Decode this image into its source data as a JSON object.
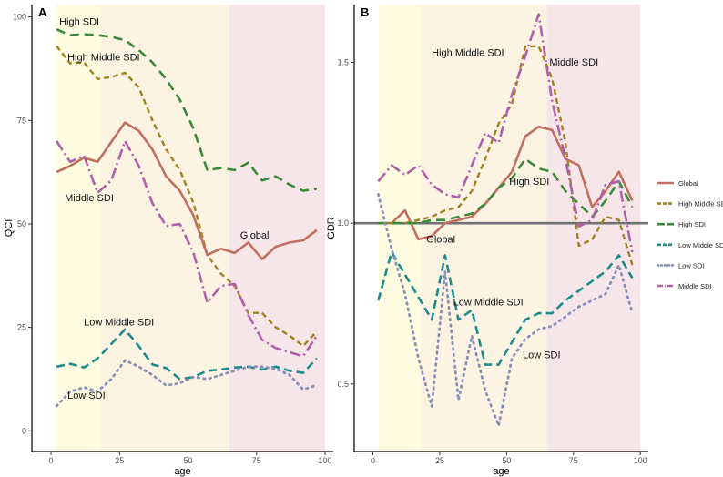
{
  "panels": [
    {
      "id": "A",
      "label": "A",
      "type": "line",
      "xlabel": "age",
      "ylabel": "QCI",
      "xlim": [
        -7,
        103
      ],
      "ylim": [
        -5,
        103
      ],
      "xticks": [
        0,
        25,
        50,
        75,
        100
      ],
      "yticks": [
        0,
        25,
        50,
        75,
        100
      ],
      "bands": [
        {
          "from": 2,
          "to": 18,
          "color": "#fdfce0"
        },
        {
          "from": 18,
          "to": 65,
          "color": "#fdf3e3"
        },
        {
          "from": 65,
          "to": 100,
          "color": "#f6e6e9"
        }
      ],
      "series": [
        {
          "name": "High SDI",
          "color": "#3a8a3a",
          "dash": "10,6",
          "width": 2.6,
          "x": [
            2,
            7,
            12,
            17,
            22,
            27,
            32,
            37,
            42,
            47,
            52,
            57,
            62,
            67,
            72,
            77,
            82,
            87,
            92,
            97
          ],
          "y": [
            97,
            95.6,
            95.8,
            95.6,
            95.2,
            94.4,
            92,
            89,
            85,
            80,
            73,
            63,
            63.5,
            63,
            64.8,
            60.5,
            61.5,
            59.5,
            58,
            58.5
          ]
        },
        {
          "name": "High Middle SDI",
          "color": "#a08224",
          "dash": "6,4",
          "width": 2.4,
          "x": [
            2,
            7,
            12,
            17,
            22,
            27,
            32,
            37,
            42,
            47,
            52,
            57,
            62,
            67,
            72,
            77,
            82,
            87,
            92,
            97
          ],
          "y": [
            93,
            88.8,
            89,
            85,
            85.5,
            86.5,
            83,
            75,
            68,
            63,
            55,
            42.5,
            38,
            35,
            28.5,
            28.5,
            25,
            23,
            20.5,
            24
          ]
        },
        {
          "name": "Global",
          "color": "#c07060",
          "dash": "",
          "width": 2.6,
          "x": [
            2,
            7,
            12,
            17,
            22,
            27,
            32,
            37,
            42,
            47,
            52,
            57,
            62,
            67,
            72,
            77,
            82,
            87,
            92,
            97
          ],
          "y": [
            62.5,
            64,
            66,
            65,
            69.8,
            74.5,
            72.5,
            68,
            61.5,
            58,
            52,
            42.5,
            44,
            43,
            45.5,
            41.5,
            44.5,
            45.5,
            46,
            48.5
          ]
        },
        {
          "name": "Middle SDI",
          "color": "#b060a8",
          "dash": "12,4,2,4",
          "width": 2.6,
          "x": [
            2,
            7,
            12,
            17,
            22,
            27,
            32,
            37,
            42,
            47,
            52,
            57,
            62,
            67,
            72,
            77,
            82,
            87,
            92,
            97
          ],
          "y": [
            70,
            65,
            66.5,
            57.5,
            60.5,
            70,
            64,
            55,
            49.5,
            50,
            43,
            31,
            35,
            35.5,
            28,
            22,
            20,
            19,
            18,
            23
          ]
        },
        {
          "name": "Low Middle SDI",
          "color": "#1e8c8c",
          "dash": "9,5",
          "width": 2.6,
          "x": [
            2,
            7,
            12,
            17,
            22,
            27,
            32,
            37,
            42,
            47,
            52,
            57,
            62,
            67,
            72,
            77,
            82,
            87,
            92,
            97
          ],
          "y": [
            15.5,
            16.2,
            15.3,
            17.5,
            21,
            24.5,
            20.5,
            16,
            15.2,
            12.5,
            13,
            14.5,
            14.8,
            15.3,
            15.5,
            14.8,
            15.5,
            14.5,
            14,
            17.5
          ]
        },
        {
          "name": "Low SDI",
          "color": "#8890b8",
          "dash": "1.5,5",
          "width": 2.8,
          "x": [
            2,
            7,
            12,
            17,
            22,
            27,
            32,
            37,
            42,
            47,
            52,
            57,
            62,
            67,
            72,
            77,
            82,
            87,
            92,
            97
          ],
          "y": [
            6,
            9.5,
            10.5,
            9.5,
            12.5,
            17,
            15.5,
            13.5,
            11,
            11.5,
            13,
            12.5,
            13.5,
            14.5,
            15.5,
            15.5,
            15,
            13.5,
            10,
            11
          ]
        }
      ],
      "annotations": [
        {
          "text": "High SDI",
          "x": 3,
          "y": 98
        },
        {
          "text": "High Middle SDI",
          "x": 6,
          "y": 89.5
        },
        {
          "text": "Middle SDI",
          "x": 5,
          "y": 55.5
        },
        {
          "text": "Global",
          "x": 69,
          "y": 46.5
        },
        {
          "text": "Low Middle SDI",
          "x": 12,
          "y": 25.5
        },
        {
          "text": "Low SDI",
          "x": 6,
          "y": 7.8
        }
      ]
    },
    {
      "id": "B",
      "label": "B",
      "type": "line",
      "xlabel": "age",
      "ylabel": "GDR",
      "xlim": [
        -7,
        103
      ],
      "ylim": [
        0.29,
        1.68
      ],
      "xticks": [
        0,
        25,
        50,
        75,
        100
      ],
      "yticks": [
        0.5,
        1.0,
        1.5
      ],
      "reference_line": 1.0,
      "bands": [
        {
          "from": 2,
          "to": 18,
          "color": "#fdfce0"
        },
        {
          "from": 18,
          "to": 65,
          "color": "#fdf3e3"
        },
        {
          "from": 65,
          "to": 100,
          "color": "#f6e6e9"
        }
      ],
      "series": [
        {
          "name": "Global",
          "color": "#c07060",
          "dash": "",
          "width": 2.6,
          "x": [
            2,
            7,
            12,
            17,
            22,
            27,
            32,
            37,
            42,
            47,
            52,
            57,
            62,
            67,
            72,
            77,
            82,
            87,
            92,
            97
          ],
          "y": [
            1.0,
            1.0,
            1.04,
            0.95,
            0.96,
            1.0,
            1.01,
            1.02,
            1.06,
            1.11,
            1.16,
            1.27,
            1.3,
            1.29,
            1.2,
            1.18,
            1.05,
            1.1,
            1.16,
            1.07
          ]
        },
        {
          "name": "High Middle SDI",
          "color": "#a08224",
          "dash": "6,4",
          "width": 2.4,
          "x": [
            2,
            7,
            12,
            17,
            22,
            27,
            32,
            37,
            42,
            47,
            52,
            57,
            62,
            67,
            72,
            77,
            82,
            87,
            92,
            97
          ],
          "y": [
            1.0,
            1.0,
            1.0,
            1.01,
            1.02,
            1.04,
            1.05,
            1.1,
            1.2,
            1.31,
            1.37,
            1.55,
            1.55,
            1.45,
            1.25,
            0.93,
            0.95,
            1.02,
            1.01,
            0.87
          ]
        },
        {
          "name": "High SDI",
          "color": "#3a8a3a",
          "dash": "10,6",
          "width": 2.6,
          "x": [
            2,
            7,
            12,
            17,
            22,
            27,
            32,
            37,
            42,
            47,
            52,
            57,
            62,
            67,
            72,
            77,
            82,
            87,
            92,
            97
          ],
          "y": [
            1.0,
            1.0,
            1.0,
            1.0,
            1.01,
            1.01,
            1.02,
            1.03,
            1.06,
            1.11,
            1.14,
            1.2,
            1.17,
            1.16,
            1.1,
            1.06,
            1.02,
            1.07,
            1.13,
            1.05
          ]
        },
        {
          "name": "Low Middle SDI",
          "color": "#1e8c8c",
          "dash": "9,5",
          "width": 2.6,
          "x": [
            2,
            7,
            12,
            17,
            22,
            27,
            32,
            37,
            42,
            47,
            52,
            57,
            62,
            67,
            72,
            77,
            82,
            87,
            92,
            97
          ],
          "y": [
            0.76,
            0.91,
            0.84,
            0.77,
            0.7,
            0.9,
            0.7,
            0.73,
            0.56,
            0.56,
            0.63,
            0.7,
            0.72,
            0.72,
            0.76,
            0.79,
            0.82,
            0.85,
            0.9,
            0.83
          ]
        },
        {
          "name": "Low SDI",
          "color": "#8890b8",
          "dash": "1.5,5",
          "width": 2.8,
          "x": [
            2,
            7,
            12,
            17,
            22,
            27,
            32,
            37,
            42,
            47,
            52,
            57,
            62,
            67,
            72,
            77,
            82,
            87,
            92,
            97
          ],
          "y": [
            1.09,
            0.92,
            0.78,
            0.58,
            0.43,
            0.85,
            0.45,
            0.65,
            0.48,
            0.37,
            0.58,
            0.64,
            0.67,
            0.68,
            0.71,
            0.74,
            0.76,
            0.78,
            0.87,
            0.72
          ]
        },
        {
          "name": "Middle SDI",
          "color": "#b060a8",
          "dash": "12,4,2,4",
          "width": 2.6,
          "x": [
            2,
            7,
            12,
            17,
            22,
            27,
            32,
            37,
            42,
            47,
            52,
            57,
            62,
            67,
            72,
            77,
            82,
            87,
            92,
            97
          ],
          "y": [
            1.13,
            1.18,
            1.15,
            1.18,
            1.12,
            1.09,
            1.08,
            1.18,
            1.28,
            1.25,
            1.4,
            1.52,
            1.65,
            1.38,
            1.2,
            0.99,
            1.01,
            1.12,
            1.13,
            0.91
          ]
        }
      ],
      "annotations": [
        {
          "text": "High Middle SDI",
          "x": 22,
          "y": 1.52
        },
        {
          "text": "Middle SDI",
          "x": 66,
          "y": 1.49
        },
        {
          "text": "High SDI",
          "x": 51,
          "y": 1.12
        },
        {
          "text": "Global",
          "x": 20,
          "y": 0.94
        },
        {
          "text": "Low Middle SDI",
          "x": 30,
          "y": 0.745
        },
        {
          "text": "Low SDI",
          "x": 56,
          "y": 0.58
        }
      ]
    }
  ],
  "legend": {
    "position": "right",
    "items": [
      {
        "name": "Global",
        "color": "#c07060",
        "style": "solid"
      },
      {
        "name": "High Middle SDI",
        "color": "#a08224",
        "style": "dashed"
      },
      {
        "name": "High SDI",
        "color": "#3a8a3a",
        "style": "longdash"
      },
      {
        "name": "Low Middle SDI",
        "color": "#1e8c8c",
        "style": "dashed"
      },
      {
        "name": "Low SDI",
        "color": "#8890b8",
        "style": "dotted"
      },
      {
        "name": "Middle SDI",
        "color": "#b060a8",
        "style": "dotdash"
      }
    ]
  }
}
